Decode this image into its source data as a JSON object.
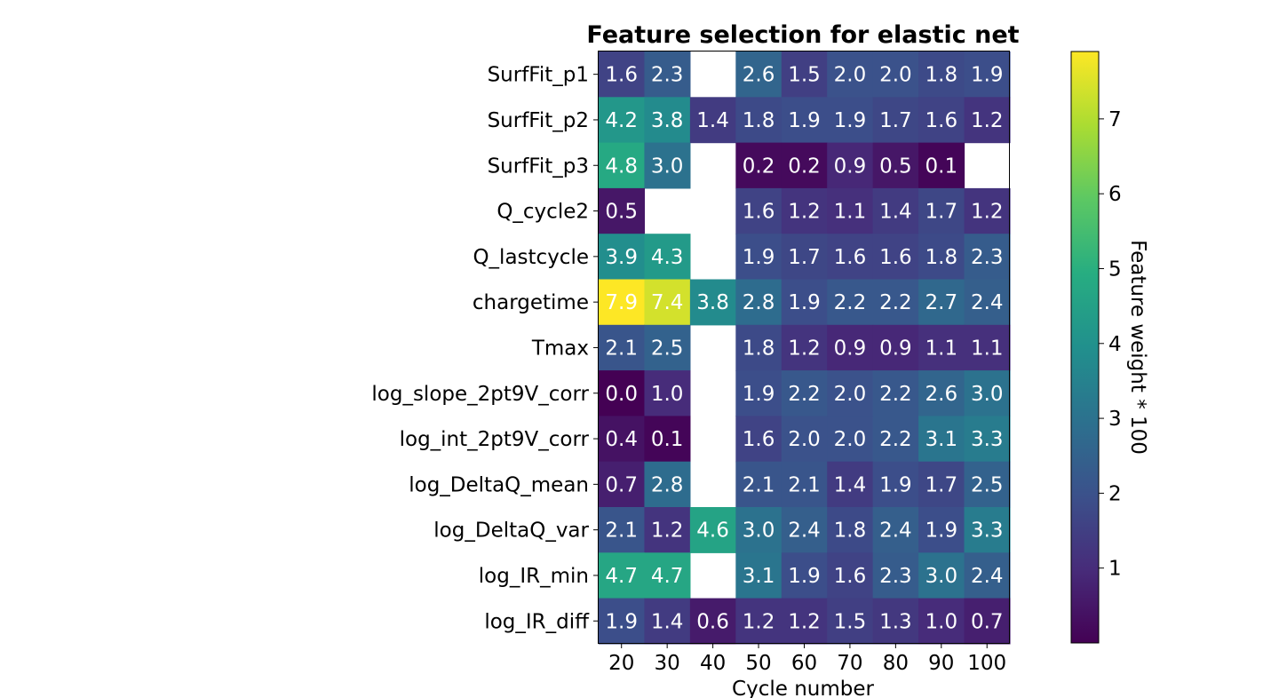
{
  "chart_data": {
    "type": "heatmap",
    "title": "Feature selection for elastic net",
    "xlabel": "Cycle number",
    "ylabel": "",
    "colorbar_label": "Feature weight * 100",
    "colormap": "viridis",
    "colorbar_range": [
      0.0,
      7.9
    ],
    "colorbar_ticks": [
      1,
      2,
      3,
      4,
      5,
      6,
      7
    ],
    "x_categories": [
      "20",
      "30",
      "40",
      "50",
      "60",
      "70",
      "80",
      "90",
      "100"
    ],
    "y_categories": [
      "SurfFit_p1",
      "SurfFit_p2",
      "SurfFit_p3",
      "Q_cycle2",
      "Q_lastcycle",
      "chargetime",
      "Tmax",
      "log_slope_2pt9V_corr",
      "log_int_2pt9V_corr",
      "log_DeltaQ_mean",
      "log_DeltaQ_var",
      "log_IR_min",
      "log_IR_diff"
    ],
    "values": [
      [
        1.6,
        2.3,
        null,
        2.6,
        1.5,
        2.0,
        2.0,
        1.8,
        1.9
      ],
      [
        4.2,
        3.8,
        1.4,
        1.8,
        1.9,
        1.9,
        1.7,
        1.6,
        1.2
      ],
      [
        4.8,
        3.0,
        null,
        0.2,
        0.2,
        0.9,
        0.5,
        0.1,
        null
      ],
      [
        0.5,
        null,
        null,
        1.6,
        1.2,
        1.1,
        1.4,
        1.7,
        1.2
      ],
      [
        3.9,
        4.3,
        null,
        1.9,
        1.7,
        1.6,
        1.6,
        1.8,
        2.3
      ],
      [
        7.9,
        7.4,
        3.8,
        2.8,
        1.9,
        2.2,
        2.2,
        2.7,
        2.4
      ],
      [
        2.1,
        2.5,
        null,
        1.8,
        1.2,
        0.9,
        0.9,
        1.1,
        1.1
      ],
      [
        0.0,
        1.0,
        null,
        1.9,
        2.2,
        2.0,
        2.2,
        2.6,
        3.0
      ],
      [
        0.4,
        0.1,
        null,
        1.6,
        2.0,
        2.0,
        2.2,
        3.1,
        3.3
      ],
      [
        0.7,
        2.8,
        null,
        2.1,
        2.1,
        1.4,
        1.9,
        1.7,
        2.5
      ],
      [
        2.1,
        1.2,
        4.6,
        3.0,
        2.4,
        1.8,
        2.4,
        1.9,
        3.3
      ],
      [
        4.7,
        4.7,
        null,
        3.1,
        1.9,
        1.6,
        2.3,
        3.0,
        2.4
      ],
      [
        1.9,
        1.4,
        0.6,
        1.2,
        1.2,
        1.5,
        1.3,
        1.0,
        0.7
      ]
    ],
    "grid": false
  }
}
